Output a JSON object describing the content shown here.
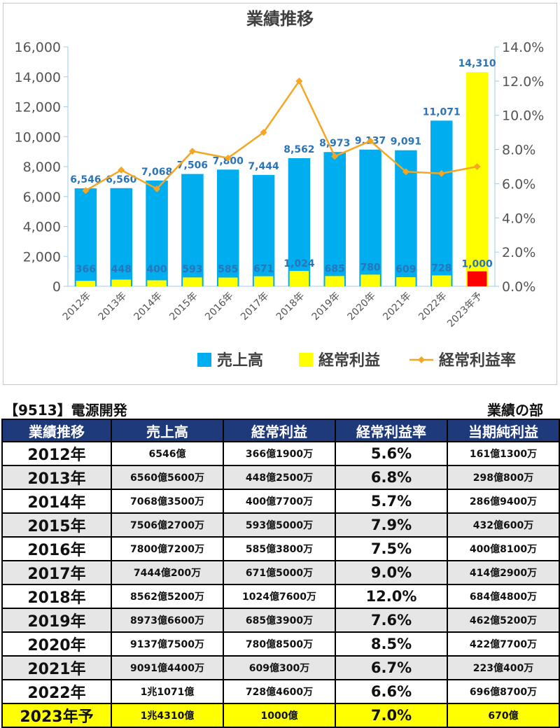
{
  "chart_data": {
    "type": "bar",
    "title": "業績推移",
    "categories": [
      "2012年",
      "2013年",
      "2014年",
      "2015年",
      "2016年",
      "2017年",
      "2018年",
      "2019年",
      "2020年",
      "2021年",
      "2022年",
      "2023年予"
    ],
    "series": [
      {
        "name": "売上高",
        "type": "bar",
        "axis": "left",
        "color": "#00aeef",
        "values": [
          6546,
          6560,
          7068,
          7506,
          7800,
          7444,
          8562,
          8973,
          9137,
          9091,
          11071,
          14310
        ],
        "labels": [
          "6,546",
          "6,560",
          "7,068",
          "7,506",
          "7,800",
          "7,444",
          "8,562",
          "8,973",
          "9,137",
          "9,091",
          "11,071",
          "14,310"
        ]
      },
      {
        "name": "経常利益",
        "type": "bar",
        "axis": "left",
        "color": "#ffff00",
        "values": [
          366,
          448,
          400,
          593,
          585,
          671,
          1024,
          685,
          780,
          609,
          728,
          1000
        ],
        "labels": [
          "366",
          "448",
          "400",
          "593",
          "585",
          "671",
          "1,024",
          "685",
          "780",
          "609",
          "728",
          "1,000"
        ]
      },
      {
        "name": "経常利益率",
        "type": "line",
        "axis": "right",
        "color": "#f5a623",
        "unit": "%",
        "values": [
          5.6,
          6.8,
          5.7,
          7.9,
          7.5,
          9.0,
          12.0,
          7.6,
          8.5,
          6.7,
          6.6,
          7.0
        ]
      }
    ],
    "forecast_colors": {
      "売上高": "#ffff00",
      "経常利益": "#ff0000"
    },
    "ylim": [
      0,
      16000
    ],
    "y_ticks": [
      "0",
      "2,000",
      "4,000",
      "6,000",
      "8,000",
      "10,000",
      "12,000",
      "14,000",
      "16,000"
    ],
    "y2lim": [
      0,
      14
    ],
    "y2_ticks": [
      "0.0%",
      "2.0%",
      "4.0%",
      "6.0%",
      "8.0%",
      "10.0%",
      "12.0%",
      "14.0%"
    ],
    "xlabel": "",
    "ylabel": "",
    "grid": false,
    "legend_position": "bottom"
  },
  "info": {
    "stock_title": "【9513】電源開発",
    "section_label": "業績の部"
  },
  "table": {
    "headers": [
      "業績推移",
      "売上高",
      "経常利益",
      "経常利益率",
      "当期純利益"
    ],
    "rows": [
      [
        "2012年",
        "6546億",
        "366億1900万",
        "5.6%",
        "161億1300万"
      ],
      [
        "2013年",
        "6560億5600万",
        "448億2500万",
        "6.8%",
        "298億800万"
      ],
      [
        "2014年",
        "7068億3500万",
        "400億7700万",
        "5.7%",
        "286億9400万"
      ],
      [
        "2015年",
        "7506億2700万",
        "593億5000万",
        "7.9%",
        "432億600万"
      ],
      [
        "2016年",
        "7800億7200万",
        "585億3800万",
        "7.5%",
        "400億8100万"
      ],
      [
        "2017年",
        "7444億200万",
        "671億5000万",
        "9.0%",
        "414億2900万"
      ],
      [
        "2018年",
        "8562億5200万",
        "1024億7600万",
        "12.0%",
        "684億4800万"
      ],
      [
        "2019年",
        "8973億6600万",
        "685億3900万",
        "7.6%",
        "462億5200万"
      ],
      [
        "2020年",
        "9137億7500万",
        "780億8500万",
        "8.5%",
        "422億7700万"
      ],
      [
        "2021年",
        "9091億4400万",
        "609億300万",
        "6.7%",
        "223億400万"
      ],
      [
        "2022年",
        "1兆1071億",
        "728億4600万",
        "6.6%",
        "696億8700万"
      ],
      [
        "2023年予",
        "1兆4310億",
        "1000億",
        "7.0%",
        "670億"
      ]
    ]
  }
}
